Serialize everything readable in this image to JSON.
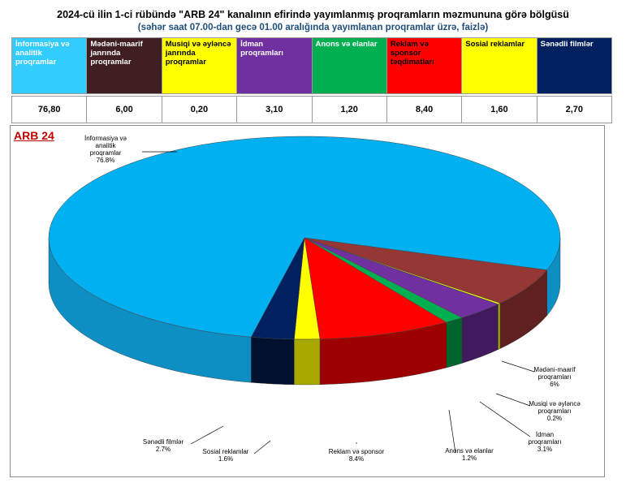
{
  "header": {
    "title": "2024-cü ilin 1-ci rübündə \"ARB 24\" kanalının efirində yayımlanmış proqramların məzmununa görə bölgüsü",
    "subtitle": "(səhər saat 07.00-dan gecə 01.00 aralığında yayımlanan proqramlar üzrə, faizlə)"
  },
  "table": {
    "columns": [
      {
        "name": "İnformasiya və analitik proqramlar",
        "value": "76,80",
        "color": "#33ccff",
        "text_color": "#ffffff"
      },
      {
        "name": "Mədəni-maarif janrında proqramlar",
        "value": "6,00",
        "color": "#3f1f22",
        "text_color": "#ffffff"
      },
      {
        "name": "Musiqi və əyləncə janrında proqramlar",
        "value": "0,20",
        "color": "#ffff00",
        "text_color": "#000000"
      },
      {
        "name": "İdman proqramları",
        "value": "3,10",
        "color": "#7030a0",
        "text_color": "#ffffff"
      },
      {
        "name": "Anons və elanlar",
        "value": "1,20",
        "color": "#00b050",
        "text_color": "#ffffff"
      },
      {
        "name": "Reklam və sponsor təqdimatları",
        "value": "8,40",
        "color": "#ff0000",
        "text_color": "#000000"
      },
      {
        "name": "Sosial reklamlar",
        "value": "1,60",
        "color": "#ffff00",
        "text_color": "#000000"
      },
      {
        "name": "Sənədli filmlər",
        "value": "2,70",
        "color": "#002060",
        "text_color": "#ffffff"
      }
    ]
  },
  "chart_data": {
    "type": "pie",
    "title": "ARB 24",
    "slices": [
      {
        "label": "İnformasiya və analitik proqramlar",
        "value": 76.8,
        "display": "76.8%",
        "color": "#00b0f0",
        "side": "#0e8fc4"
      },
      {
        "label": "Mədəni-maarif proqramları",
        "value": 6,
        "display": "6%",
        "color": "#953735",
        "side": "#5e2120"
      },
      {
        "label": "Musiqi və əyləncə proqramları",
        "value": 0.2,
        "display": "0.2%",
        "color": "#ffff00",
        "side": "#a8a800"
      },
      {
        "label": "İdman proqramları",
        "value": 3.1,
        "display": "3.1%",
        "color": "#7030a0",
        "side": "#401a5c"
      },
      {
        "label": "Anons və elanlar",
        "value": 1.2,
        "display": "1.2%",
        "color": "#00b050",
        "side": "#00642d"
      },
      {
        "label": "Reklam və sponsor",
        "value": 8.4,
        "display": "8.4%",
        "color": "#ff0000",
        "side": "#9c0000"
      },
      {
        "label": "Sosial reklamlar",
        "value": 1.6,
        "display": "1.6%",
        "color": "#ffff00",
        "side": "#a8a800"
      },
      {
        "label": "Sənədli filmlər",
        "value": 2.7,
        "display": "2.7%",
        "color": "#002060",
        "side": "#00112f"
      }
    ]
  }
}
